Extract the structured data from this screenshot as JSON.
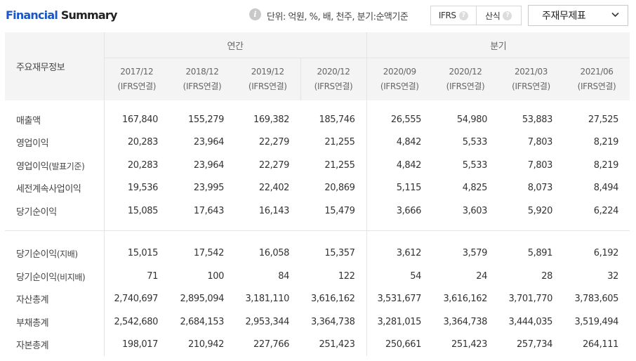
{
  "header": {
    "title_part1": "Financial",
    "title_part2": "Summary",
    "info_icon": "info-icon",
    "unit_text": "단위: 억원, %, 배, 천주, 분기:순액기준"
  },
  "toggle": {
    "options": [
      {
        "label": "IFRS",
        "help_icon": "question-icon"
      },
      {
        "label": "산식",
        "help_icon": "question-icon"
      }
    ]
  },
  "select": {
    "value": "주재무제표",
    "icon": "chevron-down-icon"
  },
  "table": {
    "item_header": "주요재무정보",
    "groups": {
      "annual": "연간",
      "quarterly": "분기"
    },
    "periods": [
      {
        "date": "2017/12",
        "basis": "(IFRS연결)"
      },
      {
        "date": "2018/12",
        "basis": "(IFRS연결)"
      },
      {
        "date": "2019/12",
        "basis": "(IFRS연결)"
      },
      {
        "date": "2020/12",
        "basis": "(IFRS연결)"
      },
      {
        "date": "2020/09",
        "basis": "(IFRS연결)"
      },
      {
        "date": "2020/12",
        "basis": "(IFRS연결)"
      },
      {
        "date": "2021/03",
        "basis": "(IFRS연결)"
      },
      {
        "date": "2021/06",
        "basis": "(IFRS연결)"
      }
    ],
    "rows_group1": [
      {
        "label": "매출액",
        "sub": "",
        "values": [
          "167,840",
          "155,279",
          "169,382",
          "185,746",
          "26,555",
          "54,980",
          "53,883",
          "27,525"
        ]
      },
      {
        "label": "영업이익",
        "sub": "",
        "values": [
          "20,283",
          "23,964",
          "22,279",
          "21,255",
          "4,842",
          "5,533",
          "7,803",
          "8,219"
        ]
      },
      {
        "label": "영업이익",
        "sub": "(발표기준)",
        "values": [
          "20,283",
          "23,964",
          "22,279",
          "21,255",
          "4,842",
          "5,533",
          "7,803",
          "8,219"
        ]
      },
      {
        "label": "세전계속사업이익",
        "sub": "",
        "values": [
          "19,536",
          "23,995",
          "22,402",
          "20,869",
          "5,115",
          "4,825",
          "8,073",
          "8,494"
        ]
      },
      {
        "label": "당기순이익",
        "sub": "",
        "values": [
          "15,085",
          "17,643",
          "16,143",
          "15,479",
          "3,666",
          "3,603",
          "5,920",
          "6,224"
        ]
      }
    ],
    "rows_group2": [
      {
        "label": "당기순이익",
        "sub": "(지배)",
        "values": [
          "15,015",
          "17,542",
          "16,058",
          "15,357",
          "3,612",
          "3,579",
          "5,891",
          "6,192"
        ]
      },
      {
        "label": "당기순이익",
        "sub": "(비지배)",
        "values": [
          "71",
          "100",
          "84",
          "122",
          "54",
          "24",
          "28",
          "32"
        ]
      },
      {
        "label": "자산총계",
        "sub": "",
        "values": [
          "2,740,697",
          "2,895,094",
          "3,181,110",
          "3,616,162",
          "3,531,677",
          "3,616,162",
          "3,701,770",
          "3,783,605"
        ]
      },
      {
        "label": "부채총계",
        "sub": "",
        "values": [
          "2,542,680",
          "2,684,153",
          "2,953,344",
          "3,364,738",
          "3,281,015",
          "3,364,738",
          "3,444,035",
          "3,519,494"
        ]
      },
      {
        "label": "자본총계",
        "sub": "",
        "values": [
          "198,017",
          "210,942",
          "227,766",
          "251,423",
          "250,661",
          "251,423",
          "257,734",
          "264,111"
        ]
      }
    ]
  }
}
